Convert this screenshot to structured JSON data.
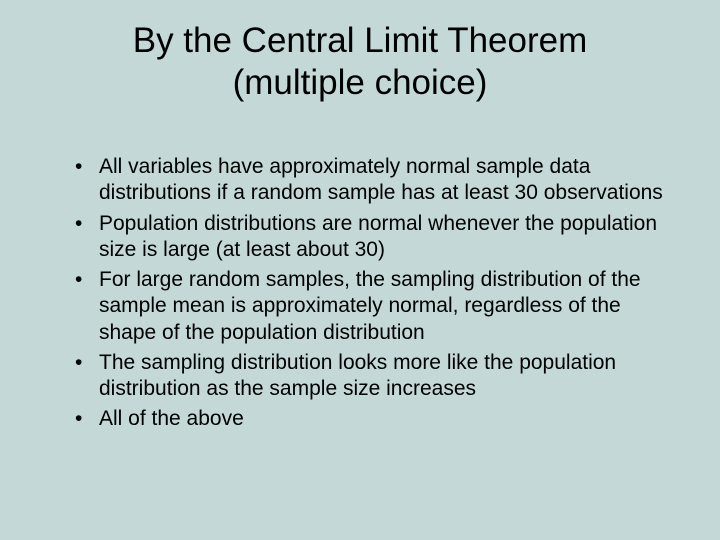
{
  "slide": {
    "background_color": "#c4d8d8",
    "text_color": "#000000",
    "title": {
      "line1": "By the Central Limit Theorem",
      "line2": "(multiple choice)",
      "fontsize": 35,
      "align": "center"
    },
    "bullets": {
      "fontsize": 21,
      "items": [
        "All variables have approximately normal sample data distributions if a random sample has at least 30 observations",
        "Population distributions are normal whenever the population size is large (at least about 30)",
        "For large random samples, the sampling distribution of the sample mean is approximately normal, regardless of the shape of the population distribution",
        "The sampling distribution looks more like the population distribution as the sample size increases",
        "All of the above"
      ]
    }
  }
}
